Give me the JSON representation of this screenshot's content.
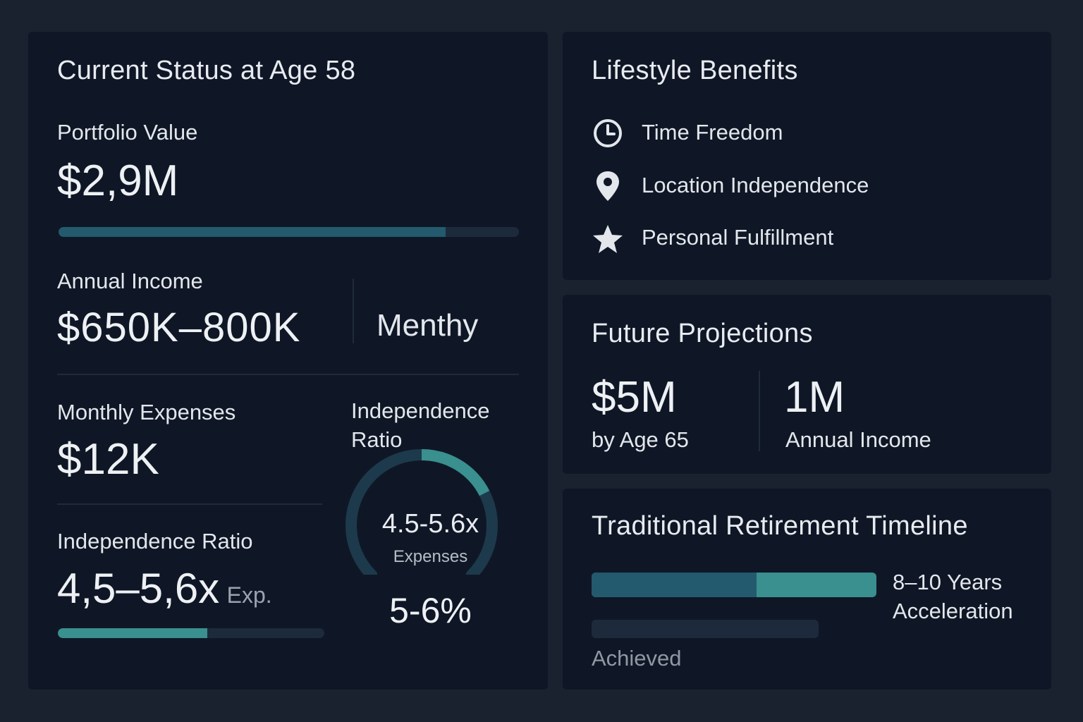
{
  "current_status": {
    "title": "Current Status at Age 58",
    "portfolio": {
      "label": "Portfolio Value",
      "value": "$2,9M",
      "progress": 0.84
    },
    "income": {
      "label": "Annual Income",
      "value": "$650K–800K",
      "side_label": "Menthy"
    },
    "expenses": {
      "label": "Monthly Expenses",
      "value": "$12K"
    },
    "ratio": {
      "label": "Independence Ratio",
      "value": "4,5–5,6x",
      "suffix": "Exp.",
      "progress": 0.56
    },
    "gauge": {
      "title_line1": "Independence",
      "title_line2": "Ratio",
      "value": "4.5-5.6x",
      "sublabel": "Expenses",
      "footer": "5-6%",
      "level": 0.35
    }
  },
  "lifestyle": {
    "title": "Lifestyle Benefits",
    "items": [
      {
        "label": "Time Freedom",
        "icon": "clock-icon"
      },
      {
        "label": "Location Independence",
        "icon": "location-pin-icon"
      },
      {
        "label": "Personal Fulfillment",
        "icon": "star-icon"
      }
    ]
  },
  "projections": {
    "title": "Future Projections",
    "left": {
      "value": "$5M",
      "label": "by Age 65"
    },
    "right": {
      "value": "1M",
      "label": "Annual Income"
    }
  },
  "timeline": {
    "title": "Traditional Retirement Timeline",
    "accel_line1": "8–10 Years",
    "accel_line2": "Acceleration",
    "achieved_label": "Achieved",
    "bar_split": 0.58
  },
  "colors": {
    "bg": "#1a2230",
    "card": "#0f1726",
    "accent_dark": "#235a6e",
    "accent_light": "#3a8f8f",
    "track": "#1d2a3b"
  }
}
